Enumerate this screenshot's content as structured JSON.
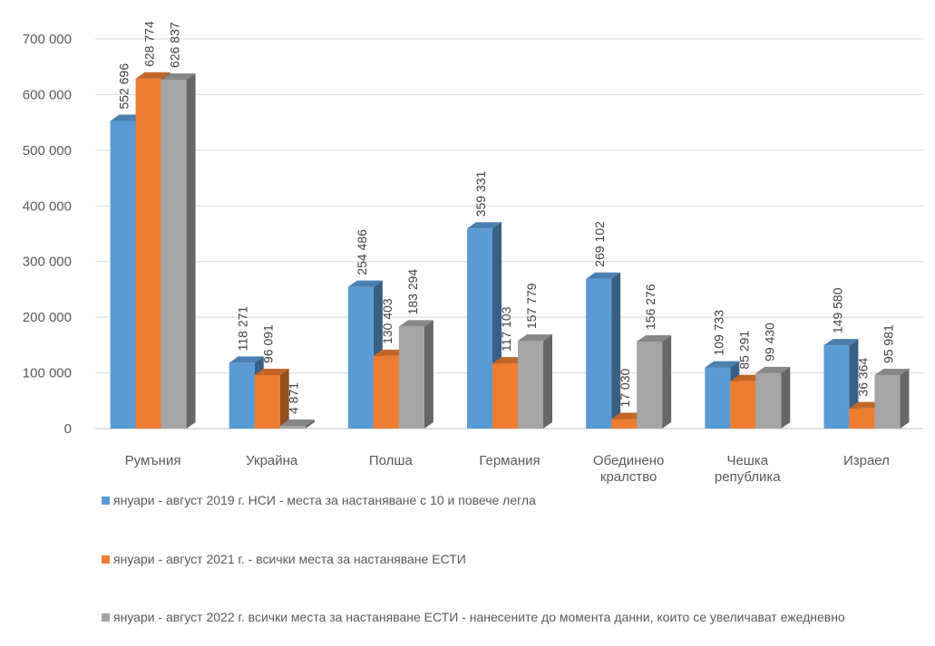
{
  "chart_data": {
    "type": "bar",
    "categories": [
      "Румъния",
      "Украйна",
      "Полша",
      "Германия",
      "Обединено\nкралство",
      "Чешка\nрепублика",
      "Израел"
    ],
    "series": [
      {
        "name": "януари - август 2019 г.  НСИ - места за настаняване с 10 и повече легла",
        "color": "#5b9bd5",
        "values": [
          552696,
          118271,
          254486,
          359331,
          269102,
          109733,
          149580
        ],
        "labels": [
          "552 696",
          "118 271",
          "254 486",
          "359 331",
          "269 102",
          "109 733",
          "149 580"
        ]
      },
      {
        "name": "януари - август 2021  г. -  всички места за настаняване ЕСТИ",
        "color": "#ed7d31",
        "values": [
          628774,
          96091,
          130403,
          117103,
          17030,
          85291,
          36364
        ],
        "labels": [
          "628 774",
          "96 091",
          "130 403",
          "117 103",
          "17 030",
          "85 291",
          "36 364"
        ]
      },
      {
        "name": "януари - август 2022 г.  всички места за настаняване ЕСТИ  - нанесените до момента данни, които се увеличават ежедневно",
        "color": "#a5a5a5",
        "values": [
          626837,
          4871,
          183294,
          157779,
          156276,
          99430,
          95981
        ],
        "labels": [
          "626 837",
          "4 871",
          "183 294",
          "157 779",
          "156 276",
          "99 430",
          "95 981"
        ]
      }
    ],
    "yticks": [
      "0",
      "100 000",
      "200 000",
      "300 000",
      "400 000",
      "500 000",
      "600 000",
      "700 000"
    ],
    "ylim": [
      0,
      700000
    ],
    "grid": true,
    "legend_position": "bottom"
  }
}
